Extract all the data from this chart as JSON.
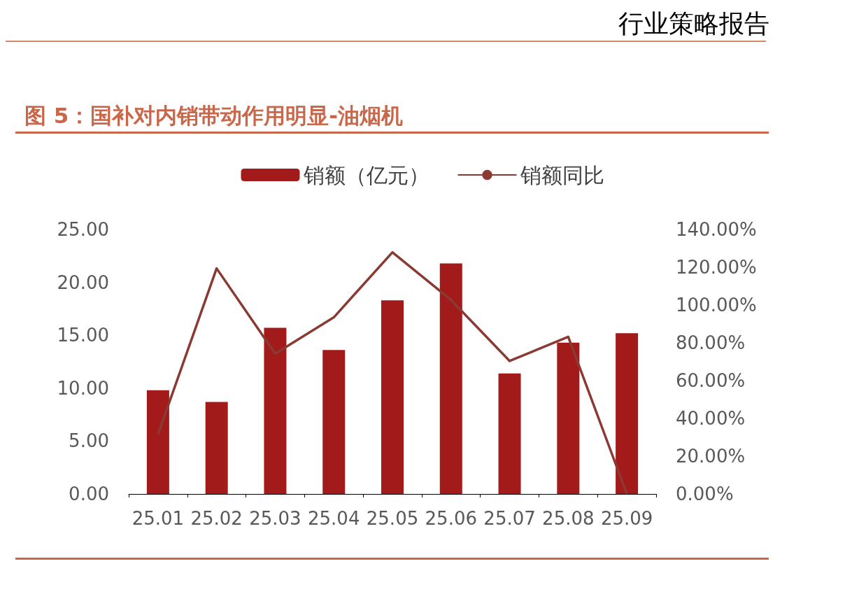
{
  "chart_data": {
    "type": "bar",
    "title": "图 5：国补对内销带动作用明显-油烟机",
    "annotations": [
      "行业策略报告"
    ],
    "categories": [
      "25.01",
      "25.02",
      "25.03",
      "25.04",
      "25.05",
      "25.06",
      "25.07",
      "25.08",
      "25.09"
    ],
    "series": [
      {
        "name": "销额（亿元）",
        "color": "#a31a1a",
        "values": [
          9.8,
          8.7,
          15.7,
          13.6,
          18.3,
          21.8,
          11.4,
          14.3,
          15.2
        ]
      },
      {
        "name": "销额同比",
        "type": "line",
        "axis": "y2",
        "color": "#8b3a33",
        "values": [
          31.6,
          119.4,
          74.3,
          93.5,
          127.9,
          102.7,
          70.4,
          83.2,
          0
        ]
      }
    ],
    "ylim": [
      0,
      25
    ],
    "yticks": [
      {
        "value": 0,
        "label": "0.00"
      },
      {
        "value": 5,
        "label": "5.00"
      },
      {
        "value": 10,
        "label": "10.00"
      },
      {
        "value": 15,
        "label": "15.00"
      },
      {
        "value": 20,
        "label": "20.00"
      },
      {
        "value": 25,
        "label": "25.00"
      }
    ],
    "y2lim": [
      0,
      140
    ],
    "y2ticks": [
      {
        "value": 0,
        "label": "0.00%"
      },
      {
        "value": 20,
        "label": "20.00%"
      },
      {
        "value": 40,
        "label": "40.00%"
      },
      {
        "value": 60,
        "label": "60.00%"
      },
      {
        "value": 80,
        "label": "80.00%"
      },
      {
        "value": 100,
        "label": "100.00%"
      },
      {
        "value": 120,
        "label": "120.00%"
      },
      {
        "value": 140,
        "label": "140.00%"
      }
    ],
    "grid": false,
    "legend": "top",
    "marker": "none"
  }
}
